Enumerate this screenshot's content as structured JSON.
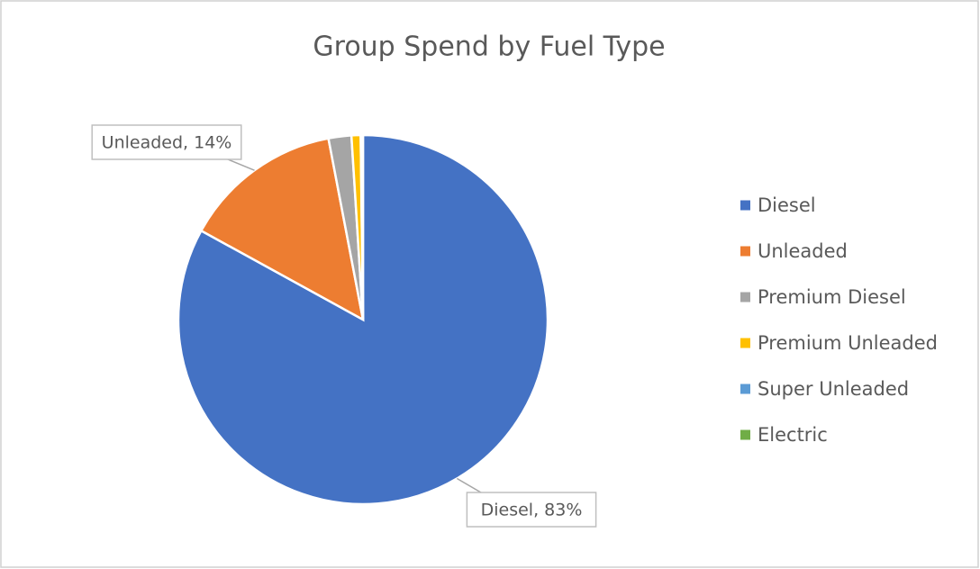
{
  "chart_data": {
    "type": "pie",
    "title": "Group Spend by Fuel Type",
    "categories": [
      "Diesel",
      "Unleaded",
      "Premium Diesel",
      "Premium Unleaded",
      "Super Unleaded",
      "Electric"
    ],
    "values": [
      83,
      14,
      2,
      0.8,
      0.1,
      0.1
    ],
    "value_labels": [
      "Diesel, 83%",
      "Unleaded, 14%",
      null,
      null,
      null,
      null
    ],
    "colors": [
      "#4472c4",
      "#ed7d31",
      "#a5a5a5",
      "#ffc000",
      "#5b9bd5",
      "#70ad47"
    ],
    "legend": "right"
  }
}
